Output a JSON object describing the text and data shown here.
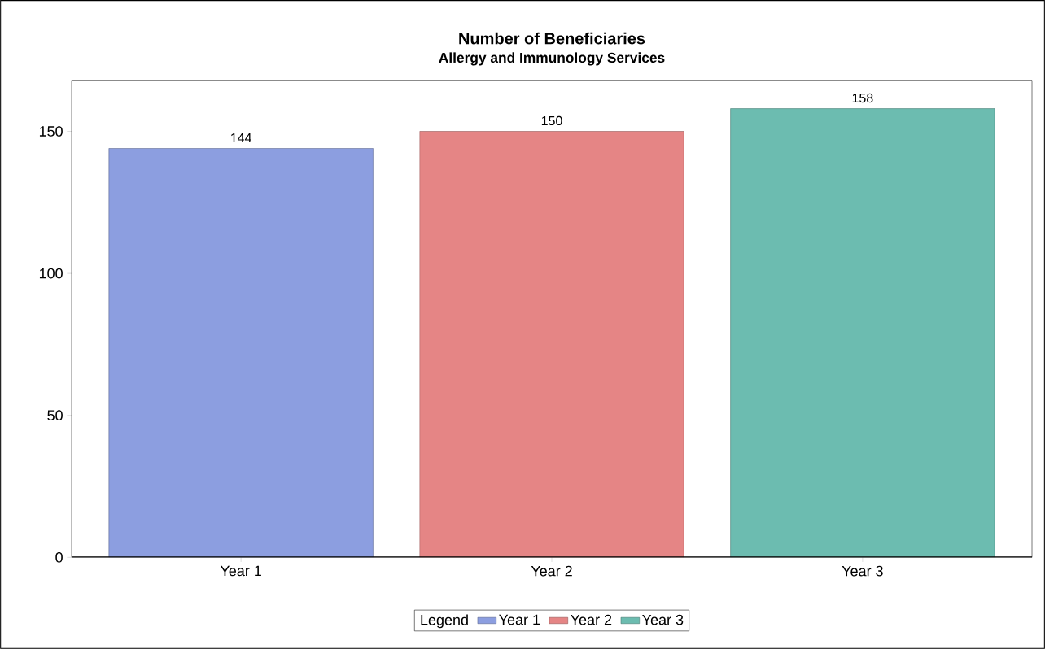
{
  "chart_data": {
    "type": "bar",
    "title": "Number of Beneficiaries",
    "subtitle": "Allergy and Immunology Services",
    "categories": [
      "Year 1",
      "Year 2",
      "Year 3"
    ],
    "series": [
      {
        "name": "Year 1",
        "color": "#8c9ee0",
        "values": [
          144,
          null,
          null
        ]
      },
      {
        "name": "Year 2",
        "color": "#e58585",
        "values": [
          null,
          150,
          null
        ]
      },
      {
        "name": "Year 3",
        "color": "#6cbcb0",
        "values": [
          null,
          null,
          158
        ]
      }
    ],
    "ylim": [
      0,
      168
    ],
    "yticks": [
      0,
      50,
      100,
      150
    ],
    "data_labels": true,
    "legend": "bottom",
    "legend_title": "Legend",
    "grid": false
  }
}
